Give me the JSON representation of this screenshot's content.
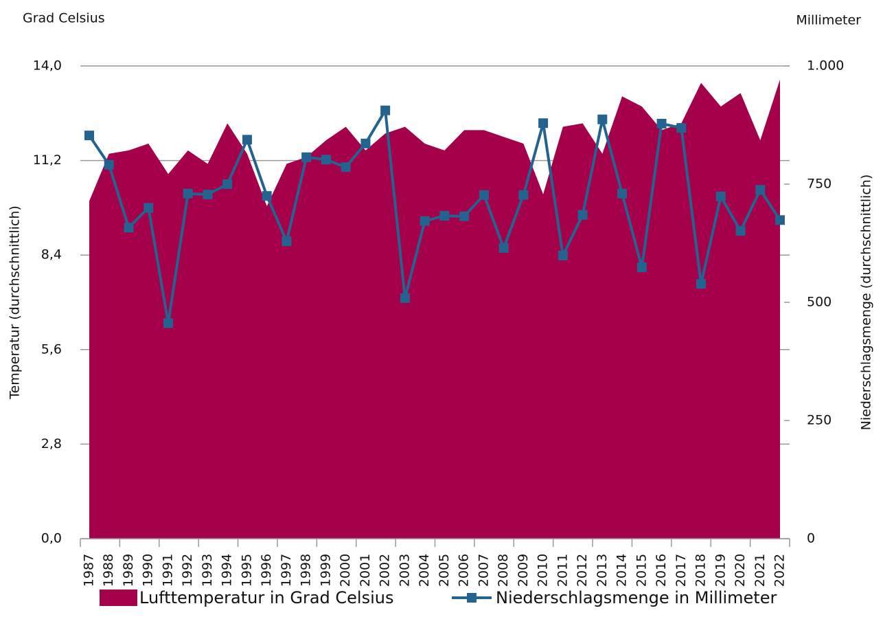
{
  "chart_data": {
    "type": "area-line",
    "y_unit_label": "Grad Celsius",
    "y2_unit_label": "Millimeter",
    "ylabel": "Temperatur (durchschnittlich)",
    "y2label": "Niederschlagsmenge (durchschnittlich)",
    "categories": [
      "1987",
      "1988",
      "1989",
      "1990",
      "1991",
      "1992",
      "1993",
      "1994",
      "1995",
      "1996",
      "1997",
      "1998",
      "1999",
      "2000",
      "2001",
      "2002",
      "2003",
      "2004",
      "2005",
      "2006",
      "2007",
      "2008",
      "2009",
      "2010",
      "2011",
      "2012",
      "2013",
      "2014",
      "2015",
      "2016",
      "2017",
      "2018",
      "2019",
      "2020",
      "2021",
      "2022"
    ],
    "series": [
      {
        "name": "Lufttemperatur in Grad Celsius",
        "color": "#a5004a",
        "axis": "y",
        "values": [
          10.0,
          11.4,
          11.5,
          11.7,
          10.8,
          11.5,
          11.1,
          12.3,
          11.4,
          9.85,
          11.1,
          11.3,
          11.8,
          12.2,
          11.5,
          12.0,
          12.2,
          11.7,
          11.5,
          12.1,
          12.1,
          11.9,
          11.7,
          10.2,
          12.2,
          12.3,
          11.4,
          13.1,
          12.8,
          12.1,
          12.3,
          13.5,
          12.8,
          13.2,
          11.8,
          13.6
        ]
      },
      {
        "name": "Niederschlagsmenge in Millimeter",
        "color": "#24628f",
        "axis": "y2",
        "values": [
          853,
          791,
          658,
          700,
          456,
          730,
          728,
          750,
          844,
          725,
          629,
          807,
          802,
          786,
          836,
          906,
          509,
          672,
          683,
          682,
          727,
          615,
          727,
          879,
          599,
          685,
          887,
          730,
          574,
          878,
          869,
          539,
          724,
          651,
          738,
          674
        ]
      }
    ],
    "ylim": [
      0,
      14
    ],
    "yticks": [
      {
        "value": 0,
        "label": "0,0"
      },
      {
        "value": 2.8,
        "label": "2,8"
      },
      {
        "value": 5.6,
        "label": "5,6"
      },
      {
        "value": 8.4,
        "label": "8,4"
      },
      {
        "value": 11.2,
        "label": "11,2"
      },
      {
        "value": 14,
        "label": "14,0"
      }
    ],
    "y2lim": [
      0,
      1000
    ],
    "y2ticks": [
      0,
      250,
      500,
      750,
      {
        "value": 1000,
        "label": "1.000"
      }
    ],
    "grid": true,
    "legend": "bottom"
  }
}
